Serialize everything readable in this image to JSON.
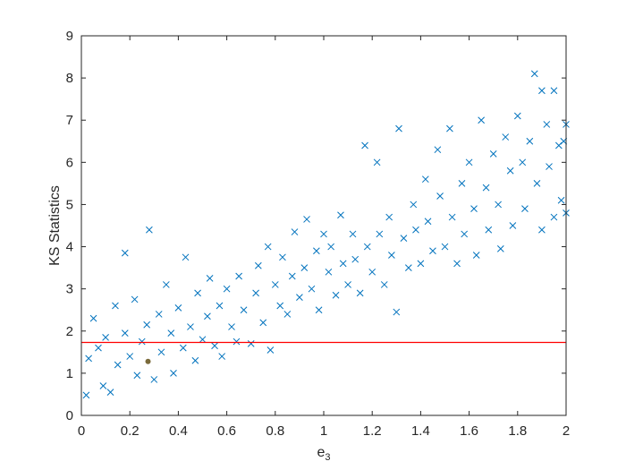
{
  "chart_data": {
    "type": "scatter",
    "title": "",
    "xlabel": "e",
    "xlabel_subscript": "3",
    "ylabel": "KS Statistics",
    "xlim": [
      0,
      2
    ],
    "ylim": [
      0,
      9
    ],
    "xticks": [
      "0",
      "0.2",
      "0.4",
      "0.6",
      "0.8",
      "1",
      "1.2",
      "1.4",
      "1.6",
      "1.8",
      "2"
    ],
    "yticks": [
      "0",
      "1",
      "2",
      "3",
      "4",
      "5",
      "6",
      "7",
      "8",
      "9"
    ],
    "grid": false,
    "marker": "x",
    "colors": {
      "scatter": "#0072BD",
      "threshold_line": "#FF0000",
      "highlight_point": "#7A6A3A",
      "axes": "#262626"
    },
    "threshold_line": {
      "y": 1.73
    },
    "highlight_point": {
      "x": 0.275,
      "y": 1.28
    },
    "series": [
      {
        "points": [
          [
            0.02,
            0.48
          ],
          [
            0.03,
            1.35
          ],
          [
            0.05,
            2.3
          ],
          [
            0.07,
            1.6
          ],
          [
            0.09,
            0.7
          ],
          [
            0.1,
            1.85
          ],
          [
            0.12,
            0.55
          ],
          [
            0.14,
            2.6
          ],
          [
            0.15,
            1.2
          ],
          [
            0.18,
            1.95
          ],
          [
            0.18,
            3.85
          ],
          [
            0.2,
            1.4
          ],
          [
            0.22,
            2.75
          ],
          [
            0.23,
            0.95
          ],
          [
            0.25,
            1.75
          ],
          [
            0.27,
            2.15
          ],
          [
            0.28,
            4.4
          ],
          [
            0.3,
            0.85
          ],
          [
            0.32,
            2.4
          ],
          [
            0.33,
            1.5
          ],
          [
            0.35,
            3.1
          ],
          [
            0.37,
            1.95
          ],
          [
            0.38,
            1.0
          ],
          [
            0.4,
            2.55
          ],
          [
            0.42,
            1.6
          ],
          [
            0.43,
            3.75
          ],
          [
            0.45,
            2.1
          ],
          [
            0.47,
            1.3
          ],
          [
            0.48,
            2.9
          ],
          [
            0.5,
            1.8
          ],
          [
            0.52,
            2.35
          ],
          [
            0.53,
            3.25
          ],
          [
            0.55,
            1.65
          ],
          [
            0.57,
            2.6
          ],
          [
            0.58,
            1.4
          ],
          [
            0.6,
            3.0
          ],
          [
            0.62,
            2.1
          ],
          [
            0.64,
            1.75
          ],
          [
            0.65,
            3.3
          ],
          [
            0.67,
            2.5
          ],
          [
            0.7,
            1.7
          ],
          [
            0.72,
            2.9
          ],
          [
            0.73,
            3.55
          ],
          [
            0.75,
            2.2
          ],
          [
            0.77,
            4.0
          ],
          [
            0.78,
            1.55
          ],
          [
            0.8,
            3.1
          ],
          [
            0.82,
            2.6
          ],
          [
            0.83,
            3.75
          ],
          [
            0.85,
            2.4
          ],
          [
            0.87,
            3.3
          ],
          [
            0.88,
            4.35
          ],
          [
            0.9,
            2.8
          ],
          [
            0.92,
            3.5
          ],
          [
            0.93,
            4.65
          ],
          [
            0.95,
            3.0
          ],
          [
            0.97,
            3.9
          ],
          [
            0.98,
            2.5
          ],
          [
            1.0,
            4.3
          ],
          [
            1.02,
            3.4
          ],
          [
            1.03,
            4.0
          ],
          [
            1.05,
            2.85
          ],
          [
            1.07,
            4.75
          ],
          [
            1.08,
            3.6
          ],
          [
            1.1,
            3.1
          ],
          [
            1.12,
            4.3
          ],
          [
            1.13,
            3.7
          ],
          [
            1.15,
            2.9
          ],
          [
            1.17,
            6.4
          ],
          [
            1.18,
            4.0
          ],
          [
            1.2,
            3.4
          ],
          [
            1.22,
            6.0
          ],
          [
            1.23,
            4.3
          ],
          [
            1.25,
            3.1
          ],
          [
            1.27,
            4.7
          ],
          [
            1.28,
            3.8
          ],
          [
            1.3,
            2.45
          ],
          [
            1.31,
            6.8
          ],
          [
            1.33,
            4.2
          ],
          [
            1.35,
            3.5
          ],
          [
            1.37,
            5.0
          ],
          [
            1.38,
            4.4
          ],
          [
            1.4,
            3.6
          ],
          [
            1.42,
            5.6
          ],
          [
            1.43,
            4.6
          ],
          [
            1.45,
            3.9
          ],
          [
            1.47,
            6.3
          ],
          [
            1.48,
            5.2
          ],
          [
            1.5,
            4.0
          ],
          [
            1.52,
            6.8
          ],
          [
            1.53,
            4.7
          ],
          [
            1.55,
            3.6
          ],
          [
            1.57,
            5.5
          ],
          [
            1.58,
            4.3
          ],
          [
            1.6,
            6.0
          ],
          [
            1.62,
            4.9
          ],
          [
            1.63,
            3.8
          ],
          [
            1.65,
            7.0
          ],
          [
            1.67,
            5.4
          ],
          [
            1.68,
            4.4
          ],
          [
            1.7,
            6.2
          ],
          [
            1.72,
            5.0
          ],
          [
            1.73,
            3.95
          ],
          [
            1.75,
            6.6
          ],
          [
            1.77,
            5.8
          ],
          [
            1.78,
            4.5
          ],
          [
            1.8,
            7.1
          ],
          [
            1.82,
            6.0
          ],
          [
            1.83,
            4.9
          ],
          [
            1.85,
            6.5
          ],
          [
            1.87,
            8.1
          ],
          [
            1.88,
            5.5
          ],
          [
            1.9,
            7.7
          ],
          [
            1.9,
            4.4
          ],
          [
            1.92,
            6.9
          ],
          [
            1.93,
            5.9
          ],
          [
            1.95,
            7.7
          ],
          [
            1.95,
            4.7
          ],
          [
            1.97,
            6.4
          ],
          [
            1.98,
            5.1
          ],
          [
            2.0,
            6.9
          ],
          [
            2.0,
            4.8
          ],
          [
            1.99,
            6.5
          ]
        ]
      }
    ]
  }
}
